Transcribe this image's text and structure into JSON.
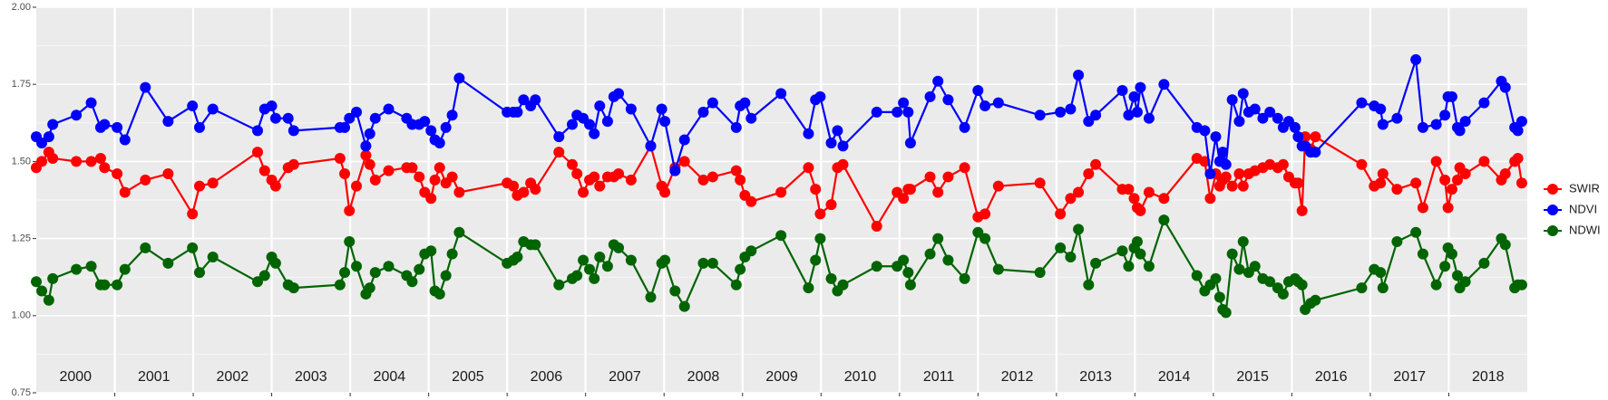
{
  "chart_data": {
    "type": "line",
    "x": [
      2000.0,
      2000.07,
      2000.16,
      2000.21,
      2000.51,
      2000.7,
      2000.82,
      2000.87,
      2001.03,
      2001.13,
      2001.39,
      2001.68,
      2001.99,
      2002.08,
      2002.25,
      2002.82,
      2002.91,
      2003.0,
      2003.05,
      2003.21,
      2003.28,
      2003.87,
      2003.93,
      2003.99,
      2004.08,
      2004.2,
      2004.25,
      2004.32,
      2004.49,
      2004.72,
      2004.79,
      2004.88,
      2004.95,
      2005.03,
      2005.08,
      2005.14,
      2005.22,
      2005.3,
      2005.39,
      2006.0,
      2006.08,
      2006.13,
      2006.21,
      2006.3,
      2006.36,
      2006.66,
      2006.83,
      2006.89,
      2006.97,
      2007.05,
      2007.11,
      2007.18,
      2007.28,
      2007.36,
      2007.42,
      2007.58,
      2007.83,
      2007.97,
      2008.01,
      2008.14,
      2008.26,
      2008.5,
      2008.62,
      2008.92,
      2008.97,
      2009.03,
      2009.11,
      2009.49,
      2009.84,
      2009.93,
      2009.99,
      2010.13,
      2010.21,
      2010.28,
      2010.71,
      2010.97,
      2011.05,
      2011.11,
      2011.14,
      2011.39,
      2011.49,
      2011.62,
      2011.83,
      2012.0,
      2012.09,
      2012.26,
      2012.79,
      2013.05,
      2013.18,
      2013.28,
      2013.41,
      2013.5,
      2013.84,
      2013.92,
      2013.99,
      2014.03,
      2014.07,
      2014.18,
      2014.37,
      2014.79,
      2014.89,
      2014.96,
      2015.03,
      2015.08,
      2015.12,
      2015.16,
      2015.24,
      2015.33,
      2015.38,
      2015.45,
      2015.53,
      2015.63,
      2015.72,
      2015.82,
      2015.89,
      2015.96,
      2016.04,
      2016.08,
      2016.13,
      2016.17,
      2016.24,
      2016.3,
      2016.89,
      2017.05,
      2017.13,
      2017.16,
      2017.34,
      2017.58,
      2017.67,
      2017.84,
      2017.95,
      2017.99,
      2018.04,
      2018.11,
      2018.14,
      2018.21,
      2018.45,
      2018.67,
      2018.72,
      2018.84,
      2018.88,
      2018.93
    ],
    "series": [
      {
        "name": "SWIR",
        "color": "#ff0000",
        "values": [
          1.48,
          1.5,
          1.53,
          1.51,
          1.5,
          1.5,
          1.51,
          1.48,
          1.46,
          1.4,
          1.44,
          1.46,
          1.33,
          1.42,
          1.43,
          1.53,
          1.47,
          1.44,
          1.42,
          1.48,
          1.49,
          1.51,
          1.46,
          1.34,
          1.42,
          1.52,
          1.49,
          1.44,
          1.47,
          1.48,
          1.48,
          1.45,
          1.4,
          1.38,
          1.44,
          1.48,
          1.43,
          1.45,
          1.4,
          1.43,
          1.42,
          1.39,
          1.4,
          1.43,
          1.41,
          1.53,
          1.49,
          1.46,
          1.4,
          1.44,
          1.45,
          1.42,
          1.45,
          1.45,
          1.46,
          1.44,
          1.55,
          1.42,
          1.4,
          1.48,
          1.5,
          1.44,
          1.45,
          1.47,
          1.44,
          1.39,
          1.37,
          1.4,
          1.48,
          1.41,
          1.33,
          1.36,
          1.48,
          1.49,
          1.29,
          1.4,
          1.38,
          1.41,
          1.41,
          1.45,
          1.4,
          1.45,
          1.48,
          1.32,
          1.33,
          1.42,
          1.43,
          1.33,
          1.38,
          1.4,
          1.46,
          1.49,
          1.41,
          1.41,
          1.38,
          1.35,
          1.34,
          1.4,
          1.38,
          1.51,
          1.5,
          1.38,
          1.46,
          1.42,
          1.44,
          1.45,
          1.42,
          1.46,
          1.42,
          1.46,
          1.47,
          1.48,
          1.49,
          1.48,
          1.49,
          1.45,
          1.43,
          1.43,
          1.34,
          1.58,
          1.54,
          1.58,
          1.49,
          1.42,
          1.43,
          1.46,
          1.41,
          1.43,
          1.35,
          1.5,
          1.44,
          1.35,
          1.41,
          1.44,
          1.48,
          1.46,
          1.5,
          1.44,
          1.46,
          1.5,
          1.51,
          1.43
        ]
      },
      {
        "name": "NDVI",
        "color": "#0000ff",
        "values": [
          1.58,
          1.56,
          1.58,
          1.62,
          1.65,
          1.69,
          1.61,
          1.62,
          1.61,
          1.57,
          1.74,
          1.63,
          1.68,
          1.61,
          1.67,
          1.6,
          1.67,
          1.68,
          1.64,
          1.64,
          1.6,
          1.61,
          1.61,
          1.64,
          1.66,
          1.55,
          1.59,
          1.64,
          1.67,
          1.64,
          1.62,
          1.62,
          1.63,
          1.6,
          1.57,
          1.56,
          1.61,
          1.65,
          1.77,
          1.66,
          1.66,
          1.66,
          1.7,
          1.68,
          1.7,
          1.58,
          1.62,
          1.65,
          1.64,
          1.62,
          1.59,
          1.68,
          1.63,
          1.71,
          1.72,
          1.67,
          1.55,
          1.67,
          1.63,
          1.47,
          1.57,
          1.66,
          1.69,
          1.61,
          1.68,
          1.69,
          1.64,
          1.72,
          1.59,
          1.7,
          1.71,
          1.56,
          1.6,
          1.55,
          1.66,
          1.66,
          1.69,
          1.66,
          1.56,
          1.71,
          1.76,
          1.7,
          1.61,
          1.73,
          1.68,
          1.69,
          1.65,
          1.66,
          1.67,
          1.78,
          1.63,
          1.65,
          1.73,
          1.65,
          1.71,
          1.66,
          1.74,
          1.64,
          1.75,
          1.61,
          1.6,
          1.46,
          1.58,
          1.5,
          1.53,
          1.49,
          1.7,
          1.63,
          1.72,
          1.66,
          1.67,
          1.64,
          1.66,
          1.64,
          1.61,
          1.63,
          1.61,
          1.58,
          1.55,
          1.55,
          1.53,
          1.53,
          1.69,
          1.68,
          1.67,
          1.62,
          1.64,
          1.83,
          1.61,
          1.62,
          1.65,
          1.71,
          1.71,
          1.61,
          1.6,
          1.63,
          1.69,
          1.76,
          1.74,
          1.61,
          1.6,
          1.63
        ]
      },
      {
        "name": "NDWI",
        "color": "#006400",
        "values": [
          1.11,
          1.08,
          1.05,
          1.12,
          1.15,
          1.16,
          1.1,
          1.1,
          1.1,
          1.15,
          1.22,
          1.17,
          1.22,
          1.14,
          1.19,
          1.11,
          1.13,
          1.19,
          1.17,
          1.1,
          1.09,
          1.1,
          1.14,
          1.24,
          1.16,
          1.07,
          1.09,
          1.14,
          1.16,
          1.13,
          1.11,
          1.15,
          1.2,
          1.21,
          1.08,
          1.07,
          1.13,
          1.2,
          1.27,
          1.17,
          1.18,
          1.19,
          1.24,
          1.23,
          1.23,
          1.1,
          1.12,
          1.13,
          1.18,
          1.15,
          1.12,
          1.19,
          1.16,
          1.23,
          1.22,
          1.18,
          1.06,
          1.17,
          1.18,
          1.08,
          1.03,
          1.17,
          1.17,
          1.1,
          1.15,
          1.19,
          1.21,
          1.26,
          1.09,
          1.18,
          1.25,
          1.12,
          1.08,
          1.1,
          1.16,
          1.16,
          1.18,
          1.14,
          1.1,
          1.2,
          1.25,
          1.18,
          1.12,
          1.27,
          1.25,
          1.15,
          1.14,
          1.22,
          1.19,
          1.28,
          1.1,
          1.17,
          1.21,
          1.16,
          1.22,
          1.24,
          1.2,
          1.16,
          1.31,
          1.13,
          1.08,
          1.1,
          1.12,
          1.06,
          1.02,
          1.01,
          1.2,
          1.15,
          1.24,
          1.14,
          1.16,
          1.12,
          1.11,
          1.09,
          1.07,
          1.11,
          1.12,
          1.11,
          1.1,
          1.02,
          1.04,
          1.05,
          1.09,
          1.15,
          1.14,
          1.09,
          1.24,
          1.27,
          1.2,
          1.1,
          1.16,
          1.22,
          1.2,
          1.13,
          1.09,
          1.11,
          1.17,
          1.25,
          1.23,
          1.09,
          1.1,
          1.1
        ]
      }
    ],
    "xlim": [
      2000,
      2019
    ],
    "xticks": [
      2001,
      2002,
      2003,
      2004,
      2005,
      2006,
      2007,
      2008,
      2009,
      2010,
      2011,
      2012,
      2013,
      2014,
      2015,
      2016,
      2017,
      2018
    ],
    "x_band_labels": [
      2000,
      2001,
      2002,
      2003,
      2004,
      2005,
      2006,
      2007,
      2008,
      2009,
      2010,
      2011,
      2012,
      2013,
      2014,
      2015,
      2016,
      2017,
      2018
    ],
    "ylim": [
      0.75,
      2.0
    ],
    "yticks": [
      {
        "value": 0.75,
        "label": "0.75"
      },
      {
        "value": 1.0,
        "label": "1.00"
      },
      {
        "value": 1.25,
        "label": "1.25"
      },
      {
        "value": 1.5,
        "label": "1.50"
      },
      {
        "value": 1.75,
        "label": "1.75"
      },
      {
        "value": 2.0,
        "label": "2.00"
      }
    ],
    "grid": true,
    "legend": "right"
  }
}
